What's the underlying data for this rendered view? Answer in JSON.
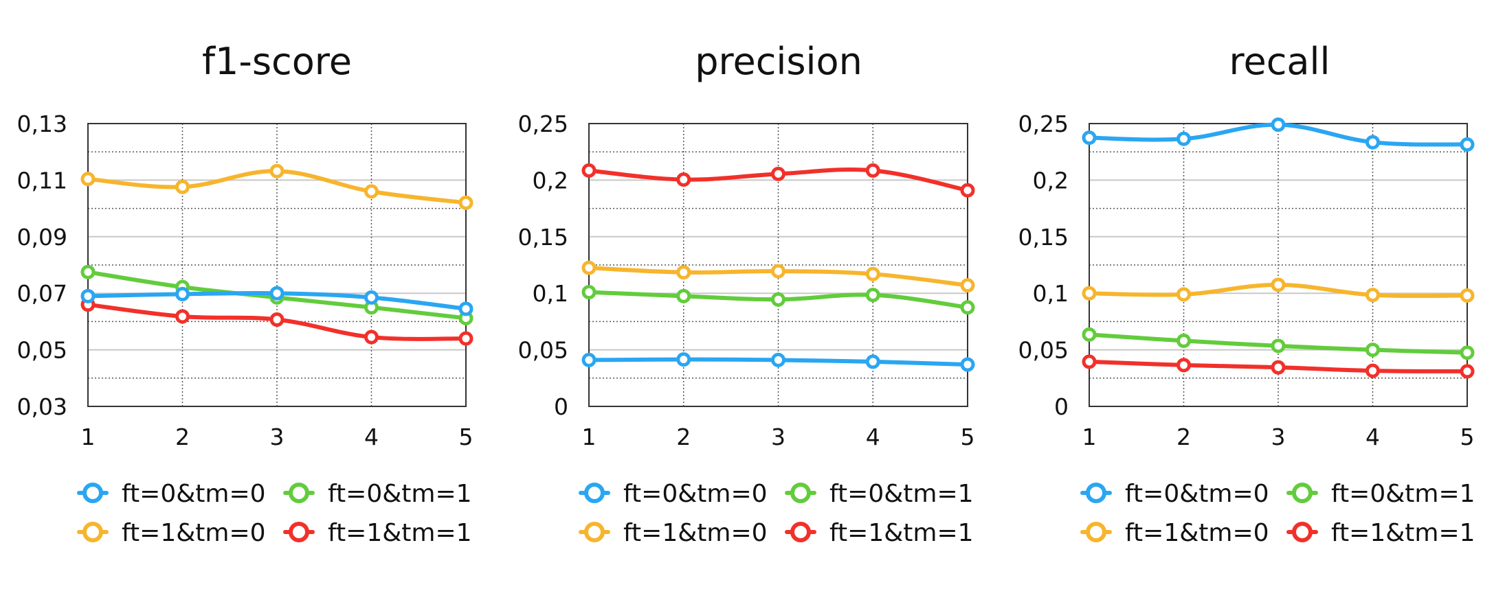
{
  "colors": {
    "ft0_tm0": "#2aa6f2",
    "ft0_tm1": "#62cc3c",
    "ft1_tm0": "#f7b52d",
    "ft1_tm1": "#f2302a",
    "grid_solid": "#c8c8c8",
    "grid_dotted": "#555555",
    "axis": "#333333"
  },
  "chart_data": [
    {
      "type": "line",
      "title": "f1-score",
      "xlabel": "",
      "ylabel": "",
      "x": [
        1,
        2,
        3,
        4,
        5
      ],
      "x_tick_labels": [
        "1",
        "2",
        "3",
        "4",
        "5"
      ],
      "ylim": [
        0.03,
        0.13
      ],
      "y_ticks": [
        0.03,
        0.05,
        0.07,
        0.09,
        0.11,
        0.13
      ],
      "y_tick_labels": [
        "0,03",
        "0,05",
        "0,07",
        "0,09",
        "0,11",
        "0,13"
      ],
      "grid": true,
      "legend_position": "bottom",
      "series": [
        {
          "key": "ft0_tm0",
          "name": "ft=0&tm=0",
          "values": [
            0.069,
            0.0697,
            0.07,
            0.0685,
            0.0645
          ]
        },
        {
          "key": "ft0_tm1",
          "name": "ft=0&tm=1",
          "values": [
            0.0775,
            0.0722,
            0.0685,
            0.065,
            0.0612
          ]
        },
        {
          "key": "ft1_tm0",
          "name": "ft=1&tm=0",
          "values": [
            0.1104,
            0.1076,
            0.1132,
            0.106,
            0.102
          ]
        },
        {
          "key": "ft1_tm1",
          "name": "ft=1&tm=1",
          "values": [
            0.066,
            0.0618,
            0.0607,
            0.0545,
            0.054
          ]
        }
      ]
    },
    {
      "type": "line",
      "title": "precision",
      "xlabel": "",
      "ylabel": "",
      "x": [
        1,
        2,
        3,
        4,
        5
      ],
      "x_tick_labels": [
        "1",
        "2",
        "3",
        "4",
        "5"
      ],
      "ylim": [
        0,
        0.25
      ],
      "y_ticks": [
        0,
        0.05,
        0.1,
        0.15,
        0.2,
        0.25
      ],
      "y_tick_labels": [
        "0",
        "0,05",
        "0,1",
        "0,15",
        "0,2",
        "0,25"
      ],
      "grid": true,
      "legend_position": "bottom",
      "series": [
        {
          "key": "ft0_tm0",
          "name": "ft=0&tm=0",
          "values": [
            0.041,
            0.0415,
            0.041,
            0.0395,
            0.037
          ]
        },
        {
          "key": "ft0_tm1",
          "name": "ft=0&tm=1",
          "values": [
            0.101,
            0.0975,
            0.0945,
            0.0985,
            0.0875
          ]
        },
        {
          "key": "ft1_tm0",
          "name": "ft=1&tm=0",
          "values": [
            0.1225,
            0.1185,
            0.1195,
            0.117,
            0.107
          ]
        },
        {
          "key": "ft1_tm1",
          "name": "ft=1&tm=1",
          "values": [
            0.2085,
            0.2005,
            0.2055,
            0.2085,
            0.191
          ]
        }
      ]
    },
    {
      "type": "line",
      "title": "recall",
      "xlabel": "",
      "ylabel": "",
      "x": [
        1,
        2,
        3,
        4,
        5
      ],
      "x_tick_labels": [
        "1",
        "2",
        "3",
        "4",
        "5"
      ],
      "ylim": [
        0,
        0.25
      ],
      "y_ticks": [
        0,
        0.05,
        0.1,
        0.15,
        0.2,
        0.25
      ],
      "y_tick_labels": [
        "0",
        "0,05",
        "0,1",
        "0,15",
        "0,2",
        "0,25"
      ],
      "grid": true,
      "legend_position": "bottom",
      "series": [
        {
          "key": "ft0_tm0",
          "name": "ft=0&tm=0",
          "values": [
            0.2375,
            0.2365,
            0.249,
            0.2335,
            0.2315
          ]
        },
        {
          "key": "ft0_tm1",
          "name": "ft=0&tm=1",
          "values": [
            0.0635,
            0.058,
            0.0535,
            0.05,
            0.0475
          ]
        },
        {
          "key": "ft1_tm0",
          "name": "ft=1&tm=0",
          "values": [
            0.1,
            0.099,
            0.1075,
            0.0985,
            0.098
          ]
        },
        {
          "key": "ft1_tm1",
          "name": "ft=1&tm=1",
          "values": [
            0.0395,
            0.0365,
            0.0345,
            0.0315,
            0.031
          ]
        }
      ]
    }
  ]
}
